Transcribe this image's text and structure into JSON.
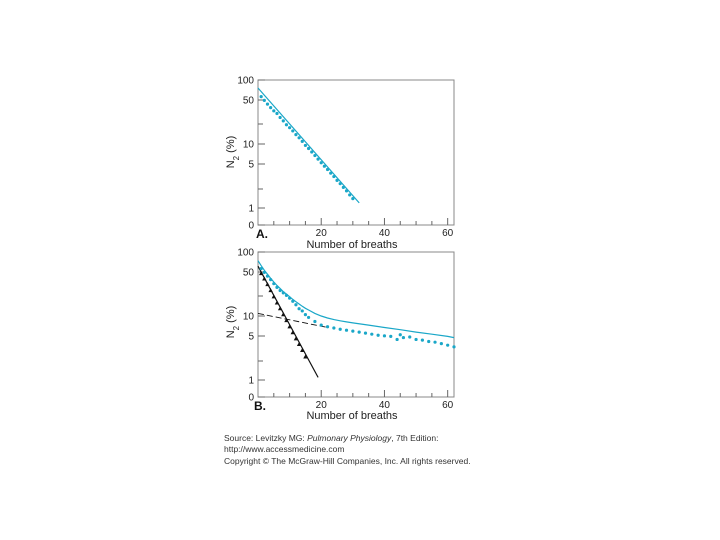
{
  "chart_data": [
    {
      "type": "scatter",
      "panel": "A.",
      "xlabel": "Number of breaths",
      "ylabel_main": "N",
      "ylabel_sub": "2",
      "ylabel_unit": " (%)",
      "x_ticks": [
        "20",
        "40",
        "60"
      ],
      "y_ticks": [
        "100",
        "50",
        "10",
        "5",
        "1",
        "0"
      ],
      "xlim": [
        0,
        62
      ],
      "yscale": "log",
      "grid": false,
      "series": [
        {
          "color": "#1aa7c8",
          "marker": "circle",
          "x": [
            1,
            2,
            3,
            4,
            5,
            6,
            7,
            8,
            9,
            10,
            11,
            12,
            13,
            14,
            15,
            16,
            17,
            18,
            19,
            20,
            21,
            22,
            23,
            24,
            25,
            26,
            27,
            28,
            29,
            30
          ],
          "y": [
            55,
            48,
            42,
            37,
            33,
            30,
            26,
            23,
            20,
            18,
            16,
            14,
            12.5,
            11,
            9.5,
            8.5,
            7.5,
            6.6,
            5.8,
            5.1,
            4.5,
            4.0,
            3.5,
            3.1,
            2.7,
            2.4,
            2.1,
            1.85,
            1.6,
            1.4
          ]
        }
      ],
      "lines": [
        {
          "color": "#1aa7c8",
          "x": [
            0,
            32
          ],
          "y": [
            75,
            1.2
          ]
        }
      ]
    },
    {
      "type": "scatter",
      "panel": "B.",
      "xlabel": "Number of breaths",
      "ylabel_main": "N",
      "ylabel_sub": "2",
      "ylabel_unit": " (%)",
      "x_ticks": [
        "20",
        "40",
        "60"
      ],
      "y_ticks": [
        "100",
        "50",
        "10",
        "5",
        "1",
        "0"
      ],
      "xlim": [
        0,
        62
      ],
      "yscale": "log",
      "grid": false,
      "series": [
        {
          "color": "#1aa7c8",
          "marker": "circle",
          "x": [
            1,
            2,
            3,
            4,
            5,
            6,
            7,
            8,
            9,
            10,
            11,
            12,
            13,
            14,
            15,
            16,
            18,
            20,
            22,
            24,
            26,
            28,
            30,
            32,
            34,
            36,
            38,
            40,
            42,
            44,
            45,
            46,
            48,
            50,
            52,
            54,
            56,
            58,
            60,
            62
          ],
          "y": [
            55,
            48,
            42,
            37,
            32,
            28,
            25,
            23,
            21,
            19,
            17,
            15,
            13,
            12,
            10.5,
            9.5,
            8.2,
            7.2,
            6.8,
            6.5,
            6.2,
            6.0,
            5.8,
            5.6,
            5.4,
            5.2,
            5.0,
            4.9,
            4.8,
            4.3,
            5.1,
            4.6,
            4.7,
            4.3,
            4.2,
            4.0,
            3.9,
            3.7,
            3.5,
            3.3
          ]
        },
        {
          "color": "#111111",
          "marker": "triangle",
          "x": [
            1,
            2,
            3,
            4,
            5,
            6,
            7,
            8,
            9,
            10,
            11,
            12,
            13,
            14,
            15
          ],
          "y": [
            46,
            38,
            31,
            25,
            20,
            16,
            13,
            10.5,
            8.5,
            6.8,
            5.5,
            4.4,
            3.6,
            2.9,
            2.3
          ]
        }
      ],
      "lines": [
        {
          "color": "#1aa7c8",
          "x": [
            0,
            1,
            2,
            3,
            4,
            5,
            6,
            7,
            8,
            9,
            10,
            11,
            12,
            13,
            14,
            15,
            16,
            18,
            20,
            22,
            24,
            26,
            28,
            30,
            35,
            40,
            45,
            50,
            55,
            60,
            62
          ],
          "y": [
            73,
            61,
            52,
            45,
            39,
            34,
            30,
            27,
            24,
            22,
            20,
            18.2,
            16.7,
            15.4,
            14.2,
            13.2,
            12.4,
            11.0,
            10.0,
            9.3,
            8.8,
            8.4,
            8.1,
            7.8,
            7.2,
            6.6,
            6.1,
            5.6,
            5.2,
            4.8,
            4.6
          ]
        },
        {
          "color": "#111111",
          "x": [
            0,
            19
          ],
          "y": [
            60,
            1.1
          ]
        },
        {
          "color": "#111111",
          "dashed": true,
          "x": [
            0,
            22
          ],
          "y": [
            11,
            6.6
          ]
        }
      ]
    }
  ],
  "source": {
    "line1_prefix": "Source: Levitzky MG: ",
    "line1_title": "Pulmonary Physiology",
    "line1_suffix": ", 7th Edition:",
    "line2": "http://www.accessmedicine.com",
    "line3": "Copyright © The McGraw-Hill Companies, Inc. All rights reserved."
  },
  "colors": {
    "cyan": "#1aa7c8",
    "black": "#111111"
  }
}
